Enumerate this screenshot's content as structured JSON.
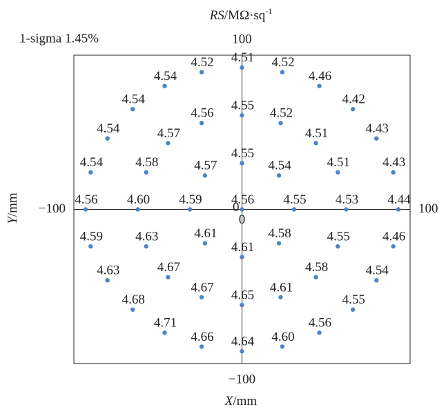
{
  "chart_data": {
    "type": "scatter",
    "title": {
      "symbol": "RS",
      "unit": "/MΩ·sq",
      "exponent": "-1"
    },
    "annotation": "1-sigma 1.45%",
    "x_label": {
      "symbol": "X",
      "unit": "/mm"
    },
    "y_label": {
      "symbol": "Y",
      "unit": "/mm"
    },
    "color": "#4a86c5",
    "xlim": [
      -100,
      100
    ],
    "ylim": [
      -100,
      100
    ],
    "xticks": [
      {
        "value": -100,
        "label": "−100"
      },
      0,
      100
    ],
    "yticks": [
      {
        "value": -100,
        "label": "−100"
      },
      0,
      100
    ],
    "x": [
      0,
      -24,
      24,
      -46,
      46,
      -65,
      66,
      0,
      -24,
      23,
      -80,
      80,
      -44,
      44,
      0,
      -22,
      22,
      -90,
      -57,
      57,
      90,
      -93,
      -62,
      -31,
      0,
      31,
      62,
      93,
      -90,
      -57,
      -22,
      0,
      22,
      57,
      90,
      -80,
      -44,
      44,
      80,
      -24,
      0,
      23,
      66,
      -65,
      -46,
      46,
      -24,
      0,
      24
    ],
    "y": [
      92,
      89,
      89,
      80,
      80,
      65,
      65,
      61,
      56,
      56,
      46,
      46,
      43,
      43,
      30,
      22,
      22,
      24,
      24,
      24,
      24,
      0,
      0,
      0,
      0,
      0,
      0,
      0,
      -24,
      -24,
      -22,
      -31,
      -22,
      -24,
      -24,
      -46,
      -44,
      -44,
      -46,
      -57,
      -62,
      -57,
      -65,
      -65,
      -80,
      -80,
      -89,
      -92,
      -89
    ],
    "values": [
      4.51,
      4.52,
      4.52,
      4.54,
      4.46,
      4.54,
      4.42,
      4.55,
      4.56,
      4.52,
      4.54,
      4.43,
      4.57,
      4.51,
      4.55,
      4.57,
      4.54,
      4.54,
      4.58,
      4.51,
      4.43,
      4.56,
      4.6,
      4.59,
      4.56,
      4.55,
      4.53,
      4.44,
      4.59,
      4.63,
      4.61,
      4.61,
      4.58,
      4.55,
      4.46,
      4.63,
      4.67,
      4.58,
      4.54,
      4.67,
      4.65,
      4.61,
      4.55,
      4.68,
      4.71,
      4.56,
      4.66,
      4.64,
      4.6
    ],
    "value_labels": [
      "4.51",
      "4.52",
      "4.52",
      "4.54",
      "4.46",
      "4.54",
      "4.42",
      "4.55",
      "4.56",
      "4.52",
      "4.54",
      "4.43",
      "4.57",
      "4.51",
      "4.55",
      "4.57",
      "4.54",
      "4.54",
      "4.58",
      "4.51",
      "4.43",
      "4.56",
      "4.60",
      "4.59",
      "4.56",
      "4.55",
      "4.53",
      "4.44",
      "4.59",
      "4.63",
      "4.61",
      "4.61",
      "4.58",
      "4.55",
      "4.46",
      "4.63",
      "4.67",
      "4.58",
      "4.54",
      "4.67",
      "4.65",
      "4.61",
      "4.55",
      "4.68",
      "4.71",
      "4.56",
      "4.66",
      "4.64",
      "4.60"
    ]
  }
}
